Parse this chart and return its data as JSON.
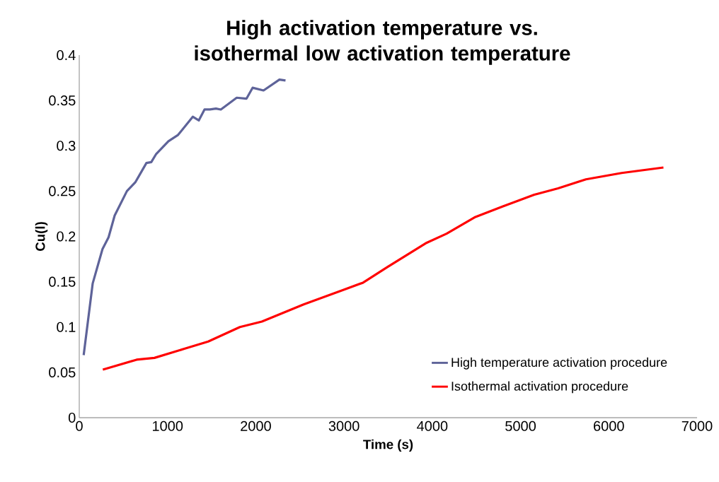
{
  "chart_data": {
    "type": "line",
    "title": "High activation temperature vs. isothermal low activation temperature",
    "xlabel": "Time (s)",
    "ylabel": "Cu(l)",
    "xlim": [
      0,
      7000
    ],
    "xticks": [
      0,
      1000,
      2000,
      3000,
      4000,
      5000,
      6000,
      7000
    ],
    "ylim": [
      0,
      0.4
    ],
    "yticks": [
      0,
      0.05,
      0.1,
      0.15,
      0.2,
      0.25,
      0.3,
      0.35,
      0.4
    ],
    "grid": false,
    "legend": "bottom right",
    "marker": "none",
    "line_style": "solid",
    "series": [
      {
        "name": "High temperature activation procedure",
        "color": "#5e6399",
        "x": [
          50,
          152,
          263,
          332,
          401,
          540,
          637,
          761,
          816,
          872,
          1010,
          1120,
          1286,
          1355,
          1419,
          1480,
          1549,
          1604,
          1784,
          1895,
          1964,
          2088,
          2268,
          2337
        ],
        "values": [
          0.069,
          0.148,
          0.186,
          0.199,
          0.223,
          0.25,
          0.26,
          0.281,
          0.282,
          0.291,
          0.305,
          0.312,
          0.332,
          0.328,
          0.34,
          0.34,
          0.341,
          0.34,
          0.353,
          0.352,
          0.364,
          0.361,
          0.373,
          0.372
        ]
      },
      {
        "name": "Isothermal activation procedure",
        "color": "#ff0000",
        "x": [
          267,
          650,
          852,
          1190,
          1461,
          1820,
          2069,
          2542,
          2991,
          3216,
          3488,
          3937,
          4162,
          4479,
          4795,
          5155,
          5425,
          5741,
          6146,
          6619
        ],
        "values": [
          0.053,
          0.064,
          0.066,
          0.076,
          0.084,
          0.1,
          0.106,
          0.125,
          0.141,
          0.149,
          0.166,
          0.193,
          0.203,
          0.221,
          0.233,
          0.246,
          0.253,
          0.263,
          0.27,
          0.276
        ]
      }
    ]
  }
}
